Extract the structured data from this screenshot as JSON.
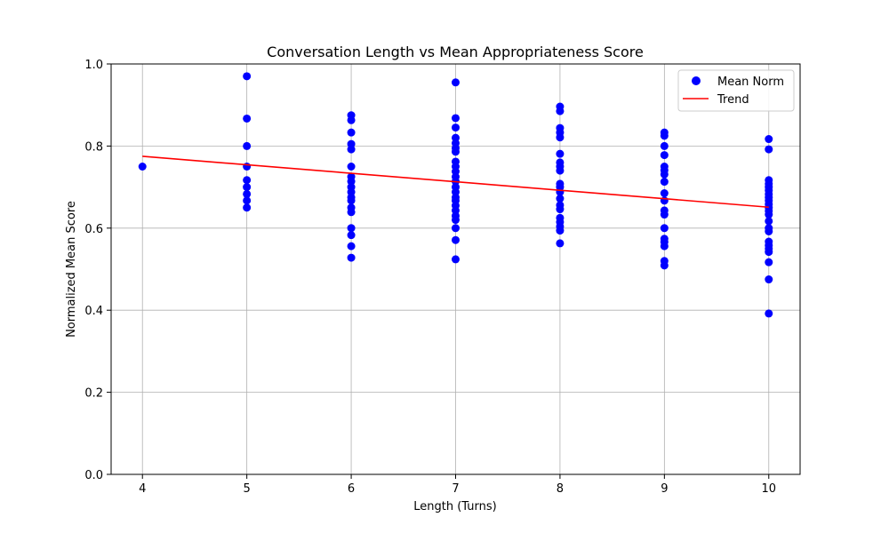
{
  "chart_data": {
    "type": "scatter",
    "title": "Conversation Length vs Mean Appropriateness Score",
    "xlabel": "Length (Turns)",
    "ylabel": "Normalized Mean Score",
    "xlim": [
      3.7,
      10.3
    ],
    "ylim": [
      0.0,
      1.0
    ],
    "xticks": [
      4,
      5,
      6,
      7,
      8,
      9,
      10
    ],
    "yticks": [
      0.0,
      0.2,
      0.4,
      0.6,
      0.8,
      1.0
    ],
    "grid": true,
    "legend_position": "top-right",
    "colors": {
      "points": "#0000ff",
      "trend": "#ff0000"
    },
    "series": [
      {
        "name": "Mean Norm",
        "kind": "scatter",
        "points": [
          [
            4,
            0.75
          ],
          [
            5,
            0.97
          ],
          [
            5,
            0.867
          ],
          [
            5,
            0.8
          ],
          [
            5,
            0.75
          ],
          [
            5,
            0.717
          ],
          [
            5,
            0.7
          ],
          [
            5,
            0.683
          ],
          [
            5,
            0.667
          ],
          [
            5,
            0.65
          ],
          [
            6,
            0.875
          ],
          [
            6,
            0.863
          ],
          [
            6,
            0.833
          ],
          [
            6,
            0.805
          ],
          [
            6,
            0.792
          ],
          [
            6,
            0.75
          ],
          [
            6,
            0.725
          ],
          [
            6,
            0.714
          ],
          [
            6,
            0.7
          ],
          [
            6,
            0.688
          ],
          [
            6,
            0.675
          ],
          [
            6,
            0.667
          ],
          [
            6,
            0.65
          ],
          [
            6,
            0.639
          ],
          [
            6,
            0.6
          ],
          [
            6,
            0.583
          ],
          [
            6,
            0.556
          ],
          [
            6,
            0.528
          ],
          [
            7,
            0.955
          ],
          [
            7,
            0.868
          ],
          [
            7,
            0.845
          ],
          [
            7,
            0.82
          ],
          [
            7,
            0.807
          ],
          [
            7,
            0.795
          ],
          [
            7,
            0.786
          ],
          [
            7,
            0.762
          ],
          [
            7,
            0.75
          ],
          [
            7,
            0.738
          ],
          [
            7,
            0.725
          ],
          [
            7,
            0.714
          ],
          [
            7,
            0.7
          ],
          [
            7,
            0.688
          ],
          [
            7,
            0.675
          ],
          [
            7,
            0.667
          ],
          [
            7,
            0.655
          ],
          [
            7,
            0.643
          ],
          [
            7,
            0.63
          ],
          [
            7,
            0.62
          ],
          [
            7,
            0.6
          ],
          [
            7,
            0.571
          ],
          [
            7,
            0.524
          ],
          [
            8,
            0.896
          ],
          [
            8,
            0.885
          ],
          [
            8,
            0.844
          ],
          [
            8,
            0.833
          ],
          [
            8,
            0.821
          ],
          [
            8,
            0.781
          ],
          [
            8,
            0.76
          ],
          [
            8,
            0.75
          ],
          [
            8,
            0.74
          ],
          [
            8,
            0.708
          ],
          [
            8,
            0.7
          ],
          [
            8,
            0.688
          ],
          [
            8,
            0.672
          ],
          [
            8,
            0.656
          ],
          [
            8,
            0.646
          ],
          [
            8,
            0.625
          ],
          [
            8,
            0.615
          ],
          [
            8,
            0.604
          ],
          [
            8,
            0.594
          ],
          [
            8,
            0.563
          ],
          [
            9,
            0.833
          ],
          [
            9,
            0.825
          ],
          [
            9,
            0.8
          ],
          [
            9,
            0.778
          ],
          [
            9,
            0.75
          ],
          [
            9,
            0.741
          ],
          [
            9,
            0.731
          ],
          [
            9,
            0.713
          ],
          [
            9,
            0.685
          ],
          [
            9,
            0.667
          ],
          [
            9,
            0.643
          ],
          [
            9,
            0.633
          ],
          [
            9,
            0.6
          ],
          [
            9,
            0.574
          ],
          [
            9,
            0.566
          ],
          [
            9,
            0.556
          ],
          [
            9,
            0.52
          ],
          [
            9,
            0.509
          ],
          [
            10,
            0.817
          ],
          [
            10,
            0.792
          ],
          [
            10,
            0.717
          ],
          [
            10,
            0.708
          ],
          [
            10,
            0.7
          ],
          [
            10,
            0.692
          ],
          [
            10,
            0.683
          ],
          [
            10,
            0.675
          ],
          [
            10,
            0.667
          ],
          [
            10,
            0.658
          ],
          [
            10,
            0.65
          ],
          [
            10,
            0.642
          ],
          [
            10,
            0.633
          ],
          [
            10,
            0.617
          ],
          [
            10,
            0.6
          ],
          [
            10,
            0.592
          ],
          [
            10,
            0.567
          ],
          [
            10,
            0.558
          ],
          [
            10,
            0.55
          ],
          [
            10,
            0.542
          ],
          [
            10,
            0.517
          ],
          [
            10,
            0.475
          ],
          [
            10,
            0.392
          ]
        ]
      },
      {
        "name": "Trend",
        "kind": "line",
        "points": [
          [
            4,
            0.775
          ],
          [
            10,
            0.651
          ]
        ]
      }
    ]
  }
}
